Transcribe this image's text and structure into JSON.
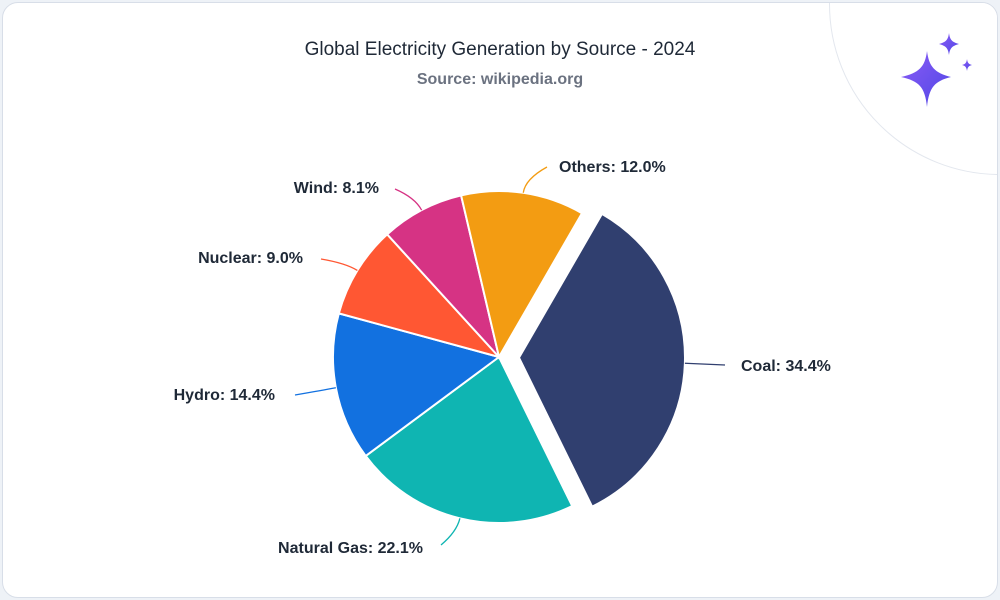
{
  "chart_data": {
    "type": "pie",
    "title": "Global Electricity Generation by Source - 2024",
    "subtitle": "Source: wikipedia.org",
    "slices": [
      {
        "label": "Coal",
        "value": 34.4,
        "display": "Coal: 34.4%",
        "color": "#303f6f",
        "exploded": true
      },
      {
        "label": "Natural Gas",
        "value": 22.1,
        "display": "Natural Gas: 22.1%",
        "color": "#0fb5b2",
        "exploded": false
      },
      {
        "label": "Hydro",
        "value": 14.4,
        "display": "Hydro: 14.4%",
        "color": "#1271e0",
        "exploded": false
      },
      {
        "label": "Nuclear",
        "value": 9.0,
        "display": "Nuclear: 9.0%",
        "color": "#ff5733",
        "exploded": false
      },
      {
        "label": "Wind",
        "value": 8.1,
        "display": "Wind: 8.1%",
        "color": "#d63384",
        "exploded": false
      },
      {
        "label": "Others",
        "value": 12.0,
        "display": "Others: 12.0%",
        "color": "#f39c12",
        "exploded": false
      }
    ]
  },
  "decoration": {
    "icon": "sparkle-icon",
    "colors": [
      "#7b3fe4",
      "#4f46e5"
    ]
  }
}
